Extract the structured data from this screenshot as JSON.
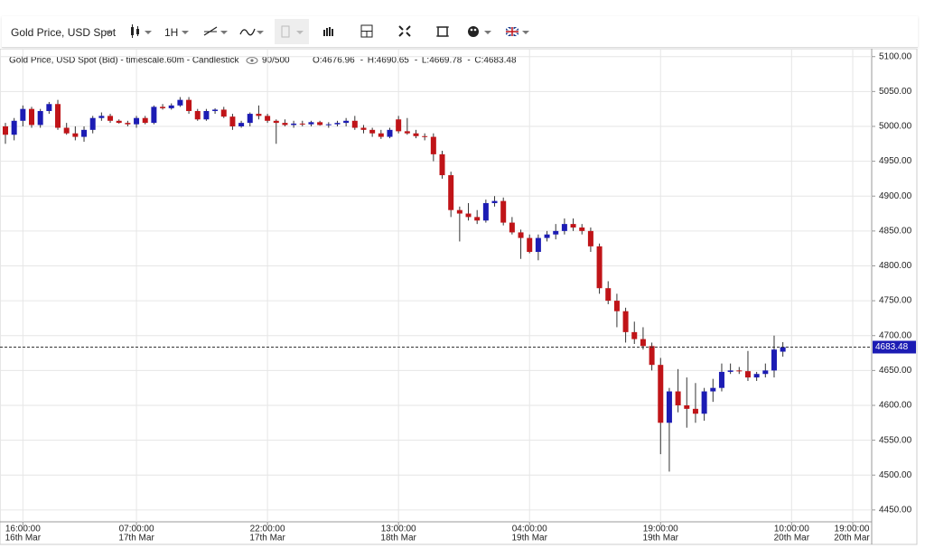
{
  "toolbar": {
    "symbol": "Gold Price, USD Spot",
    "interval": "1H"
  },
  "chart_data": {
    "type": "candlestick",
    "title": "Gold Price, USD Spot (Bid) - timescale.60m - Candlestick",
    "count_label": "90/500",
    "ohlc_labels": [
      "O:4676.96",
      "H:4690.65",
      "L:4669.78",
      "C:4683.48"
    ],
    "up_color": "#1c1cb4",
    "down_color": "#c01418",
    "grid": true,
    "last_price_line": true,
    "xlim": [
      -0.62,
      99.17
    ],
    "xticks": [
      {
        "value": 2,
        "label": "16:00:00",
        "date": "16th Mar"
      },
      {
        "value": 15,
        "label": "07:00:00",
        "date": "17th Mar"
      },
      {
        "value": 30,
        "label": "22:00:00",
        "date": "17th Mar"
      },
      {
        "value": 45,
        "label": "13:00:00",
        "date": "18th Mar"
      },
      {
        "value": 60,
        "label": "04:00:00",
        "date": "19th Mar"
      },
      {
        "value": 75,
        "label": "19:00:00",
        "date": "19th Mar"
      },
      {
        "value": 90,
        "label": "10:00:00",
        "date": "20th Mar"
      },
      {
        "value": 97,
        "label": "19:00:00",
        "date": "20th Mar"
      }
    ],
    "ylim": [
      4433,
      5110
    ],
    "yticks": [
      {
        "value": 4450,
        "label": "4450.00"
      },
      {
        "value": 4500,
        "label": "4500.00"
      },
      {
        "value": 4550,
        "label": "4550.00"
      },
      {
        "value": 4600,
        "label": "4600.00"
      },
      {
        "value": 4650,
        "label": "4650.00"
      },
      {
        "value": 4700,
        "label": "4700.00"
      },
      {
        "value": 4750,
        "label": "4750.00"
      },
      {
        "value": 4800,
        "label": "4800.00"
      },
      {
        "value": 4850,
        "label": "4850.00"
      },
      {
        "value": 4900,
        "label": "4900.00"
      },
      {
        "value": 4950,
        "label": "4950.00"
      },
      {
        "value": 5000,
        "label": "5000.00"
      },
      {
        "value": 5050,
        "label": "5050.00"
      },
      {
        "value": 5100,
        "label": "5100.00"
      }
    ],
    "open": [
      5000,
      4988,
      5008,
      5025,
      5002,
      5022,
      5032,
      4998,
      4990,
      4985,
      4995,
      5012,
      5015,
      5008,
      5005,
      5003,
      5012,
      5005,
      5028,
      5026,
      5030,
      5038,
      5022,
      5010,
      5022,
      5024,
      5014,
      5000,
      5005,
      5018,
      5015,
      5008,
      5005,
      5002,
      5004,
      5003,
      5006,
      5002,
      5003,
      5005,
      5008,
      4998,
      4995,
      4990,
      4985,
      5010,
      4993,
      4990,
      4986,
      4985,
      4960,
      4930,
      4880,
      4875,
      4870,
      4865,
      4890,
      4893,
      4862,
      4848,
      4840,
      4820,
      4840,
      4845,
      4850,
      4860,
      4855,
      4850,
      4828,
      4768,
      4750,
      4735,
      4705,
      4695,
      4685,
      4658,
      4575,
      4620,
      4600,
      4595,
      4588,
      4620,
      4625,
      4648,
      4650,
      4649,
      4640,
      4645,
      4650,
      4676.96
    ],
    "high": [
      5005,
      5012,
      5030,
      5028,
      5025,
      5035,
      5038,
      5005,
      5000,
      5000,
      5015,
      5020,
      5018,
      5010,
      5008,
      5015,
      5015,
      5030,
      5032,
      5033,
      5042,
      5042,
      5025,
      5025,
      5026,
      5028,
      5018,
      5008,
      5020,
      5030,
      5018,
      5010,
      5010,
      5008,
      5008,
      5008,
      5008,
      5006,
      5008,
      5012,
      5015,
      5002,
      4998,
      4995,
      4998,
      5015,
      5012,
      4995,
      4990,
      4990,
      4965,
      4935,
      4885,
      4890,
      4880,
      4895,
      4900,
      4898,
      4870,
      4852,
      4845,
      4845,
      4850,
      4860,
      4868,
      4868,
      4860,
      4855,
      4832,
      4778,
      4760,
      4740,
      4720,
      4712,
      4690,
      4668,
      4625,
      4652,
      4640,
      4632,
      4625,
      4638,
      4660,
      4660,
      4655,
      4678,
      4648,
      4660,
      4700,
      4690.65
    ],
    "low": [
      4975,
      4980,
      5000,
      4998,
      4998,
      5018,
      4995,
      4988,
      4980,
      4978,
      4990,
      5008,
      5005,
      5004,
      5000,
      4998,
      5003,
      5003,
      5024,
      5024,
      5028,
      5018,
      5008,
      5008,
      5018,
      5012,
      4995,
      4998,
      5000,
      5010,
      5005,
      4975,
      5000,
      4998,
      5000,
      5000,
      5001,
      4998,
      5000,
      5000,
      4995,
      4990,
      4985,
      4982,
      4983,
      4990,
      4988,
      4983,
      4980,
      4950,
      4925,
      4870,
      4835,
      4865,
      4860,
      4862,
      4885,
      4858,
      4845,
      4810,
      4818,
      4808,
      4835,
      4838,
      4845,
      4850,
      4845,
      4820,
      4760,
      4745,
      4712,
      4690,
      4688,
      4680,
      4650,
      4530,
      4505,
      4590,
      4568,
      4575,
      4578,
      4605,
      4620,
      4645,
      4645,
      4635,
      4635,
      4640,
      4640,
      4669.78
    ],
    "close": [
      4988,
      5008,
      5025,
      5002,
      5022,
      5032,
      4998,
      4990,
      4985,
      4995,
      5012,
      5015,
      5008,
      5005,
      5003,
      5012,
      5005,
      5028,
      5026,
      5030,
      5038,
      5022,
      5010,
      5022,
      5024,
      5014,
      5000,
      5005,
      5018,
      5015,
      5008,
      5005,
      5002,
      5004,
      5003,
      5006,
      5002,
      5003,
      5005,
      5008,
      4998,
      4995,
      4990,
      4985,
      4995,
      4993,
      4990,
      4986,
      4985,
      4960,
      4930,
      4880,
      4875,
      4870,
      4865,
      4890,
      4893,
      4862,
      4848,
      4840,
      4820,
      4840,
      4845,
      4850,
      4860,
      4855,
      4850,
      4828,
      4768,
      4750,
      4735,
      4705,
      4695,
      4685,
      4658,
      4575,
      4620,
      4600,
      4595,
      4588,
      4620,
      4625,
      4648,
      4650,
      4649,
      4640,
      4645,
      4650,
      4680,
      4683.48
    ]
  }
}
